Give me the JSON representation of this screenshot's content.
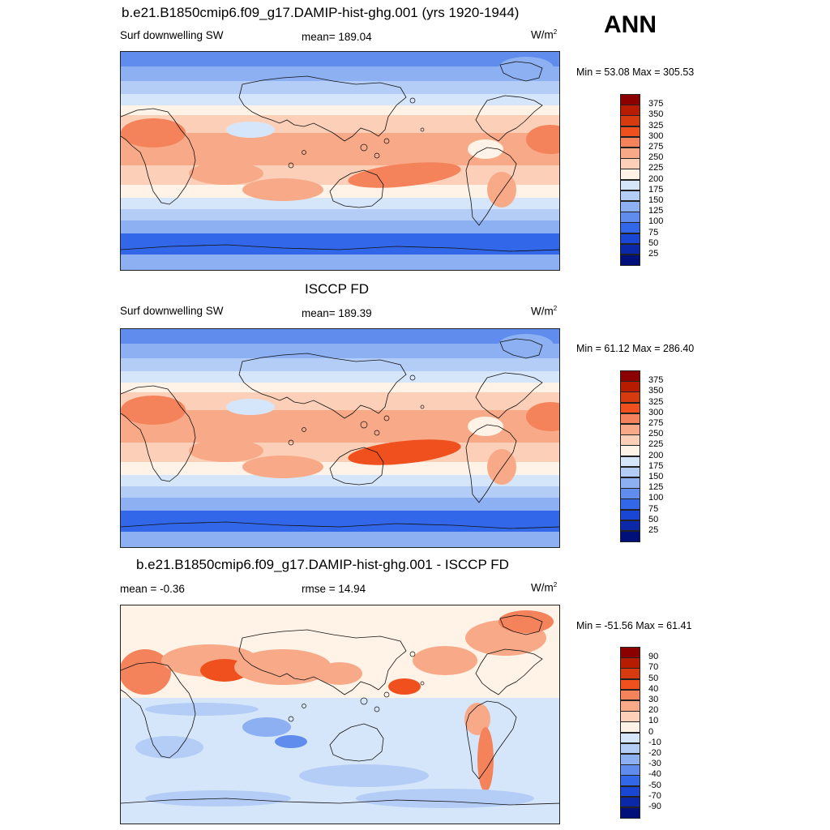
{
  "season": "ANN",
  "panels": [
    {
      "title": "b.e21.B1850cmip6.f09_g17.DAMIP-hist-ghg.001 (yrs 1920-1944)",
      "left_label": "Surf downwelling SW",
      "center_label": "mean= 189.04",
      "units_base": "W/m",
      "units_exp": "2",
      "minmax": "Min =  53.08 Max = 305.53",
      "kind": "model"
    },
    {
      "title": "ISCCP FD",
      "left_label": "Surf downwelling SW",
      "center_label": "mean= 189.39",
      "units_base": "W/m",
      "units_exp": "2",
      "minmax": "Min =  61.12 Max = 286.40",
      "kind": "obs"
    },
    {
      "title": "b.e21.B1850cmip6.f09_g17.DAMIP-hist-ghg.001 - ISCCP FD",
      "left_label": "mean =  -0.36",
      "center_label": "rmse =  14.94",
      "units_base": "W/m",
      "units_exp": "2",
      "minmax": "Min = -51.56 Max =  61.41",
      "kind": "diff"
    }
  ],
  "colorbar_abs": {
    "levels": [
      "375",
      "350",
      "325",
      "300",
      "275",
      "250",
      "225",
      "200",
      "175",
      "150",
      "125",
      "100",
      "75",
      "50",
      "25"
    ],
    "colors": [
      "#8c0000",
      "#b81c00",
      "#d83a10",
      "#f0501e",
      "#f4825a",
      "#f8aa88",
      "#fcd0b8",
      "#fff2e6",
      "#d6e6fa",
      "#b4cdf6",
      "#8cb0f2",
      "#5f8ced",
      "#3267ea",
      "#1a46d6",
      "#0a28a8",
      "#00107a"
    ]
  },
  "colorbar_diff": {
    "levels": [
      "90",
      "70",
      "50",
      "40",
      "30",
      "20",
      "10",
      "0",
      "-10",
      "-20",
      "-30",
      "-40",
      "-50",
      "-70",
      "-90"
    ],
    "colors": [
      "#8c0000",
      "#b81c00",
      "#d83a10",
      "#f0501e",
      "#f4825a",
      "#f8aa88",
      "#fcd0b8",
      "#fff2e6",
      "#d6e6fa",
      "#b4cdf6",
      "#8cb0f2",
      "#5f8ced",
      "#3267ea",
      "#1a46d6",
      "#0a28a8",
      "#00107a"
    ]
  }
}
